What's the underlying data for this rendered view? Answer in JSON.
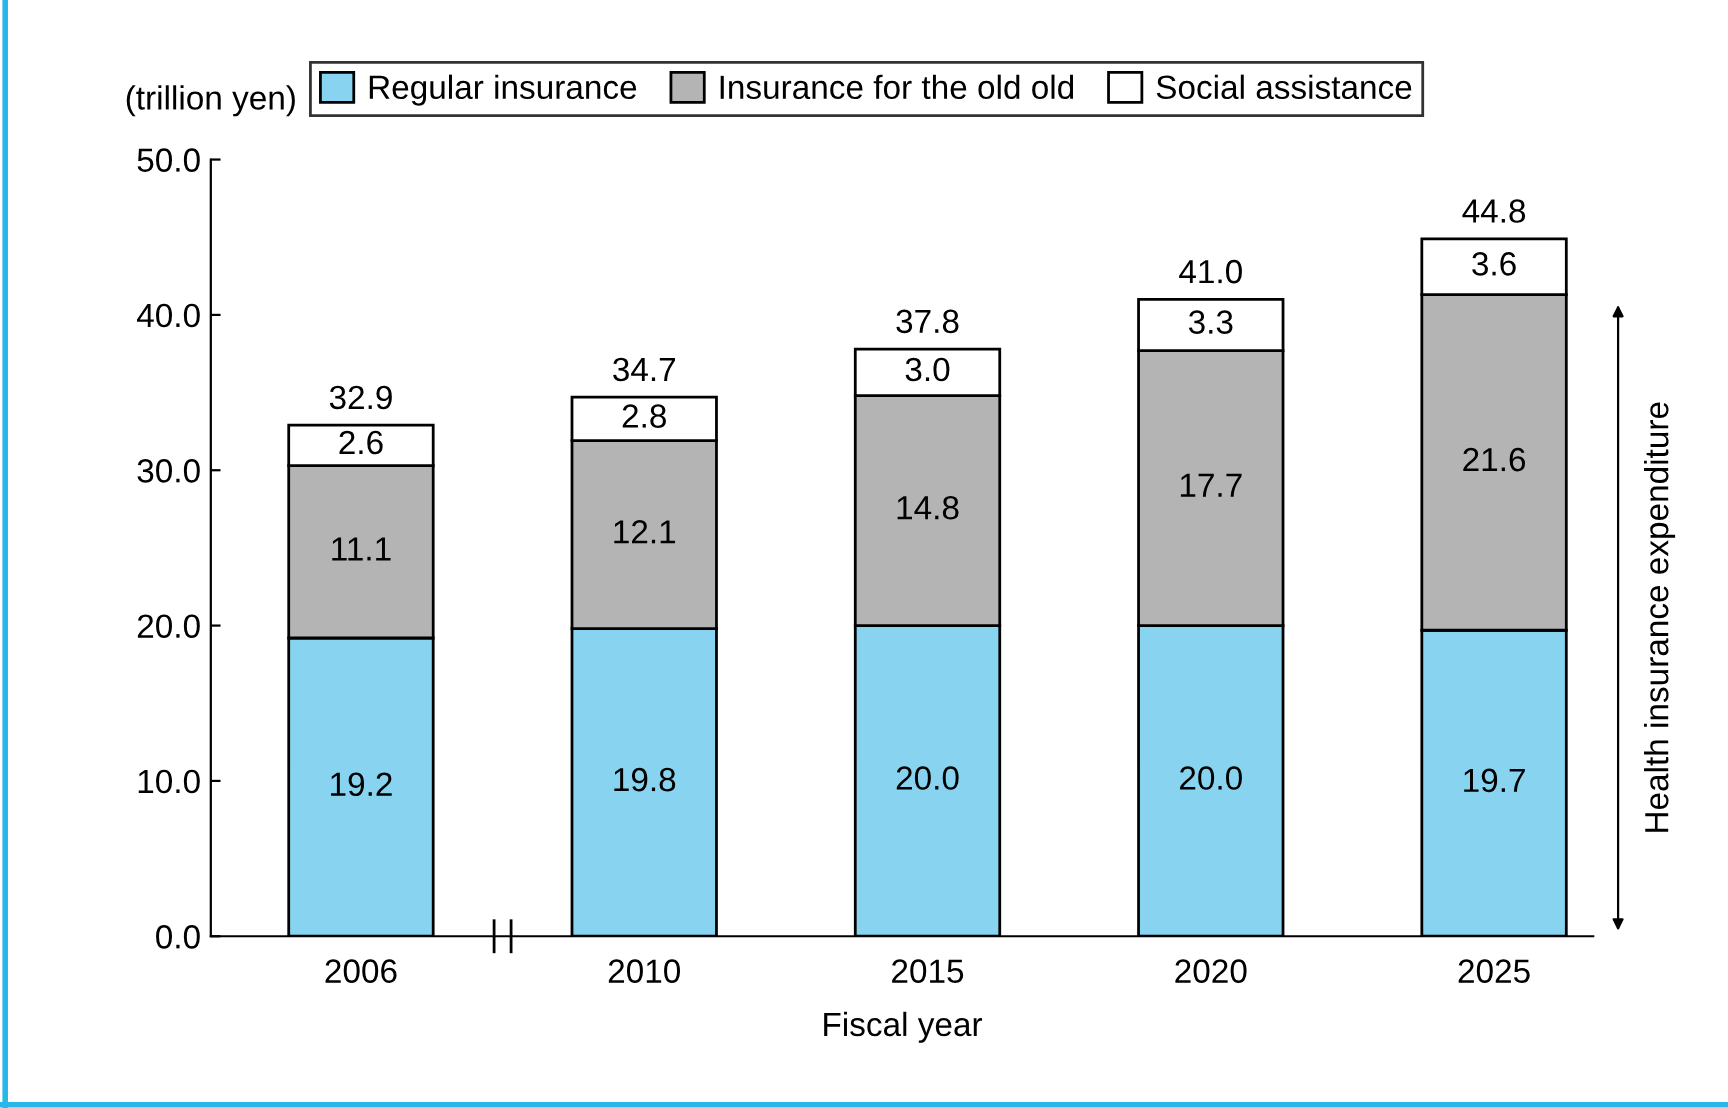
{
  "chart_data": {
    "type": "bar",
    "stacked": true,
    "categories": [
      "2006",
      "2010",
      "2015",
      "2020",
      "2025"
    ],
    "series": [
      {
        "name": "Regular insurance",
        "color": "#87d3f0",
        "values": [
          19.2,
          19.8,
          20.0,
          20.0,
          19.7
        ],
        "value_labels": [
          "19.2",
          "19.8",
          "20.0",
          "20.0",
          "19.7"
        ]
      },
      {
        "name": "Insurance for the old old",
        "color": "#b4b4b4",
        "values": [
          11.1,
          12.1,
          14.8,
          17.7,
          21.6
        ],
        "value_labels": [
          "11.1",
          "12.1",
          "14.8",
          "17.7",
          "21.6"
        ]
      },
      {
        "name": "Social assistance",
        "color": "#ffffff",
        "values": [
          2.6,
          2.8,
          3.0,
          3.3,
          3.6
        ],
        "value_labels": [
          "2.6",
          "2.8",
          "3.0",
          "3.3",
          "3.6"
        ]
      }
    ],
    "totals": [
      "32.9",
      "34.7",
      "37.8",
      "41.0",
      "44.8"
    ],
    "ylabel": "(trillion yen)",
    "xlabel": "Fiscal year",
    "ylim": [
      0,
      50
    ],
    "yticks": [
      {
        "value": 0,
        "label": "0.0"
      },
      {
        "value": 10,
        "label": "10.0"
      },
      {
        "value": 20,
        "label": "20.0"
      },
      {
        "value": 30,
        "label": "30.0"
      },
      {
        "value": 40,
        "label": "40.0"
      },
      {
        "value": 50,
        "label": "50.0"
      }
    ],
    "annotations": [
      "Health insurance expenditure"
    ],
    "legend": "top",
    "grid": false
  }
}
